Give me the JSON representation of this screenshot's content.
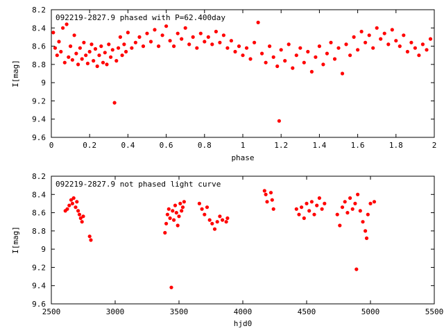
{
  "chart_data": [
    {
      "type": "scatter",
      "title": "092219-2827.9 phased with P=62.400day",
      "xlabel": "phase",
      "ylabel": "I[mag]",
      "xlim": [
        0,
        2
      ],
      "ylim": [
        8.2,
        9.6
      ],
      "y_inverted": true,
      "grid": false,
      "x_ticks": [
        "0",
        "0.2",
        "0.4",
        "0.6",
        "0.8",
        "1",
        "1.2",
        "1.4",
        "1.6",
        "1.8",
        "2"
      ],
      "y_ticks": [
        "8.2",
        "8.4",
        "8.6",
        "8.8",
        "9",
        "9.2",
        "9.4",
        "9.6"
      ],
      "marker_color": "#ff0000",
      "series": [
        {
          "points": [
            [
              0.01,
              8.45
            ],
            [
              0.02,
              8.62
            ],
            [
              0.03,
              8.7
            ],
            [
              0.04,
              8.55
            ],
            [
              0.05,
              8.66
            ],
            [
              0.06,
              8.4
            ],
            [
              0.07,
              8.78
            ],
            [
              0.08,
              8.36
            ],
            [
              0.09,
              8.72
            ],
            [
              0.1,
              8.6
            ],
            [
              0.11,
              8.75
            ],
            [
              0.12,
              8.48
            ],
            [
              0.13,
              8.68
            ],
            [
              0.14,
              8.8
            ],
            [
              0.15,
              8.62
            ],
            [
              0.16,
              8.74
            ],
            [
              0.17,
              8.56
            ],
            [
              0.18,
              8.7
            ],
            [
              0.19,
              8.79
            ],
            [
              0.2,
              8.66
            ],
            [
              0.21,
              8.58
            ],
            [
              0.22,
              8.76
            ],
            [
              0.23,
              8.63
            ],
            [
              0.24,
              8.82
            ],
            [
              0.25,
              8.7
            ],
            [
              0.26,
              8.6
            ],
            [
              0.27,
              8.78
            ],
            [
              0.28,
              8.67
            ],
            [
              0.29,
              8.8
            ],
            [
              0.3,
              8.58
            ],
            [
              0.31,
              8.72
            ],
            [
              0.32,
              8.64
            ],
            [
              0.33,
              9.22
            ],
            [
              0.34,
              8.76
            ],
            [
              0.35,
              8.62
            ],
            [
              0.36,
              8.5
            ],
            [
              0.37,
              8.7
            ],
            [
              0.38,
              8.58
            ],
            [
              0.39,
              8.66
            ],
            [
              0.4,
              8.45
            ],
            [
              0.42,
              8.62
            ],
            [
              0.44,
              8.56
            ],
            [
              0.46,
              8.5
            ],
            [
              0.48,
              8.6
            ],
            [
              0.5,
              8.46
            ],
            [
              0.52,
              8.55
            ],
            [
              0.54,
              8.42
            ],
            [
              0.56,
              8.6
            ],
            [
              0.58,
              8.48
            ],
            [
              0.6,
              8.38
            ],
            [
              0.62,
              8.54
            ],
            [
              0.64,
              8.6
            ],
            [
              0.66,
              8.46
            ],
            [
              0.68,
              8.52
            ],
            [
              0.7,
              8.4
            ],
            [
              0.72,
              8.58
            ],
            [
              0.74,
              8.5
            ],
            [
              0.76,
              8.62
            ],
            [
              0.78,
              8.46
            ],
            [
              0.8,
              8.55
            ],
            [
              0.82,
              8.5
            ],
            [
              0.84,
              8.58
            ],
            [
              0.86,
              8.44
            ],
            [
              0.88,
              8.56
            ],
            [
              0.9,
              8.48
            ],
            [
              0.92,
              8.62
            ],
            [
              0.94,
              8.54
            ],
            [
              0.96,
              8.66
            ],
            [
              0.98,
              8.6
            ],
            [
              1.0,
              8.7
            ],
            [
              1.02,
              8.62
            ],
            [
              1.04,
              8.74
            ],
            [
              1.06,
              8.56
            ],
            [
              1.08,
              8.34
            ],
            [
              1.1,
              8.68
            ],
            [
              1.12,
              8.78
            ],
            [
              1.14,
              8.6
            ],
            [
              1.16,
              8.72
            ],
            [
              1.18,
              8.82
            ],
            [
              1.19,
              9.42
            ],
            [
              1.2,
              8.64
            ],
            [
              1.22,
              8.76
            ],
            [
              1.24,
              8.58
            ],
            [
              1.26,
              8.84
            ],
            [
              1.28,
              8.7
            ],
            [
              1.3,
              8.62
            ],
            [
              1.32,
              8.78
            ],
            [
              1.34,
              8.66
            ],
            [
              1.36,
              8.88
            ],
            [
              1.38,
              8.72
            ],
            [
              1.4,
              8.6
            ],
            [
              1.42,
              8.8
            ],
            [
              1.44,
              8.68
            ],
            [
              1.46,
              8.56
            ],
            [
              1.48,
              8.74
            ],
            [
              1.5,
              8.62
            ],
            [
              1.52,
              8.9
            ],
            [
              1.54,
              8.58
            ],
            [
              1.56,
              8.7
            ],
            [
              1.58,
              8.5
            ],
            [
              1.6,
              8.64
            ],
            [
              1.62,
              8.44
            ],
            [
              1.64,
              8.56
            ],
            [
              1.66,
              8.48
            ],
            [
              1.68,
              8.62
            ],
            [
              1.7,
              8.4
            ],
            [
              1.72,
              8.52
            ],
            [
              1.74,
              8.46
            ],
            [
              1.76,
              8.58
            ],
            [
              1.78,
              8.42
            ],
            [
              1.8,
              8.54
            ],
            [
              1.82,
              8.6
            ],
            [
              1.84,
              8.48
            ],
            [
              1.86,
              8.66
            ],
            [
              1.88,
              8.56
            ],
            [
              1.9,
              8.62
            ],
            [
              1.92,
              8.7
            ],
            [
              1.94,
              8.58
            ],
            [
              1.96,
              8.64
            ],
            [
              1.98,
              8.52
            ]
          ]
        }
      ]
    },
    {
      "type": "scatter",
      "title": "092219-2827.9 not phased light curve",
      "xlabel": "hjd0",
      "ylabel": "I[mag]",
      "xlim": [
        2500,
        5500
      ],
      "ylim": [
        8.2,
        9.6
      ],
      "y_inverted": true,
      "grid": false,
      "x_ticks": [
        "2500",
        "3000",
        "3500",
        "4000",
        "4500",
        "5000",
        "5500"
      ],
      "y_ticks": [
        "8.2",
        "8.4",
        "8.6",
        "8.8",
        "9",
        "9.2",
        "9.4",
        "9.6"
      ],
      "marker_color": "#ff0000",
      "series": [
        {
          "points": [
            [
              2610,
              8.58
            ],
            [
              2625,
              8.56
            ],
            [
              2640,
              8.52
            ],
            [
              2655,
              8.46
            ],
            [
              2665,
              8.5
            ],
            [
              2675,
              8.44
            ],
            [
              2690,
              8.54
            ],
            [
              2700,
              8.48
            ],
            [
              2710,
              8.58
            ],
            [
              2720,
              8.62
            ],
            [
              2730,
              8.66
            ],
            [
              2740,
              8.7
            ],
            [
              2750,
              8.64
            ],
            [
              2800,
              8.86
            ],
            [
              2810,
              8.9
            ],
            [
              3390,
              8.82
            ],
            [
              3400,
              8.72
            ],
            [
              3410,
              8.62
            ],
            [
              3420,
              8.56
            ],
            [
              3430,
              8.66
            ],
            [
              3440,
              9.42
            ],
            [
              3450,
              8.58
            ],
            [
              3460,
              8.68
            ],
            [
              3470,
              8.52
            ],
            [
              3480,
              8.6
            ],
            [
              3490,
              8.74
            ],
            [
              3500,
              8.64
            ],
            [
              3510,
              8.5
            ],
            [
              3520,
              8.58
            ],
            [
              3530,
              8.54
            ],
            [
              3540,
              8.48
            ],
            [
              3660,
              8.5
            ],
            [
              3680,
              8.56
            ],
            [
              3700,
              8.62
            ],
            [
              3720,
              8.54
            ],
            [
              3740,
              8.68
            ],
            [
              3760,
              8.72
            ],
            [
              3780,
              8.78
            ],
            [
              3800,
              8.7
            ],
            [
              3820,
              8.64
            ],
            [
              3840,
              8.68
            ],
            [
              3870,
              8.7
            ],
            [
              3880,
              8.66
            ],
            [
              4170,
              8.36
            ],
            [
              4180,
              8.4
            ],
            [
              4190,
              8.48
            ],
            [
              4220,
              8.38
            ],
            [
              4230,
              8.46
            ],
            [
              4240,
              8.56
            ],
            [
              4420,
              8.56
            ],
            [
              4440,
              8.62
            ],
            [
              4460,
              8.54
            ],
            [
              4480,
              8.66
            ],
            [
              4500,
              8.5
            ],
            [
              4520,
              8.58
            ],
            [
              4540,
              8.48
            ],
            [
              4560,
              8.62
            ],
            [
              4580,
              8.52
            ],
            [
              4600,
              8.44
            ],
            [
              4620,
              8.56
            ],
            [
              4640,
              8.5
            ],
            [
              4740,
              8.62
            ],
            [
              4760,
              8.74
            ],
            [
              4780,
              8.54
            ],
            [
              4800,
              8.48
            ],
            [
              4820,
              8.6
            ],
            [
              4840,
              8.44
            ],
            [
              4860,
              8.56
            ],
            [
              4880,
              8.5
            ],
            [
              4890,
              9.22
            ],
            [
              4900,
              8.4
            ],
            [
              4920,
              8.58
            ],
            [
              4940,
              8.7
            ],
            [
              4960,
              8.8
            ],
            [
              4970,
              8.88
            ],
            [
              4980,
              8.62
            ],
            [
              5000,
              8.5
            ],
            [
              5030,
              8.48
            ]
          ]
        }
      ]
    }
  ]
}
